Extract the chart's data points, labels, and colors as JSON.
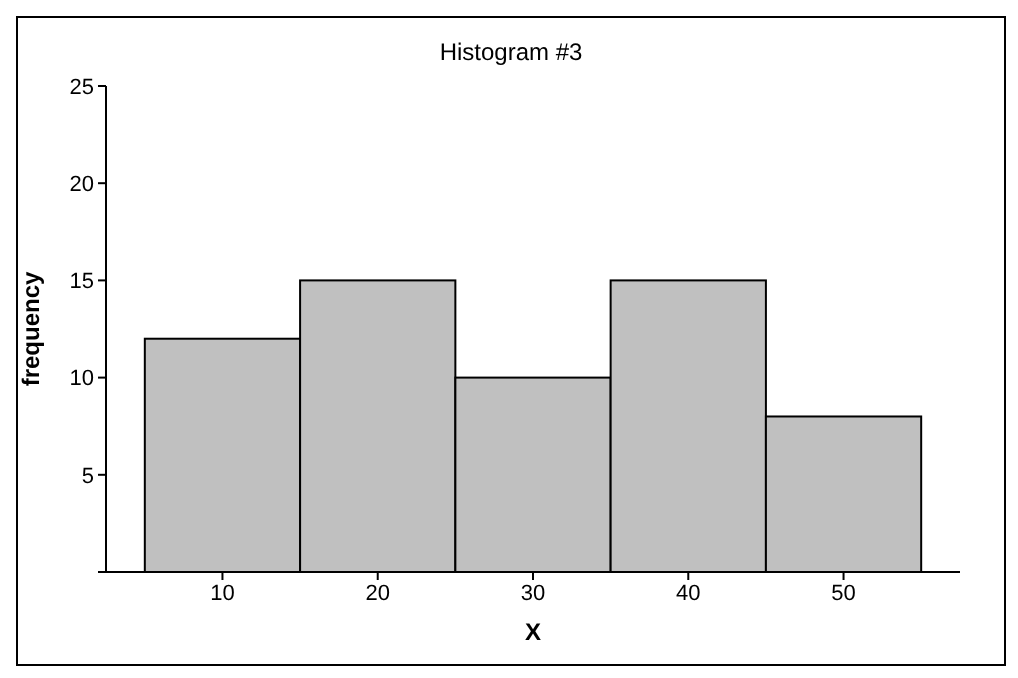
{
  "chart_data": {
    "type": "histogram",
    "title": "Histogram #3",
    "xlabel": "X",
    "ylabel": "frequency",
    "bins": [
      5,
      15,
      25,
      35,
      45,
      55
    ],
    "values": [
      12,
      15,
      10,
      15,
      8
    ],
    "color": "#c0c0c0",
    "xlim": [
      2.5,
      57.5
    ],
    "xticks": [
      10,
      20,
      30,
      40,
      50
    ],
    "ylim": [
      0,
      25
    ],
    "yticks": [
      {
        "value": 0,
        "label": null
      },
      5,
      10,
      15,
      20,
      25
    ],
    "grid": false,
    "legend": false
  }
}
